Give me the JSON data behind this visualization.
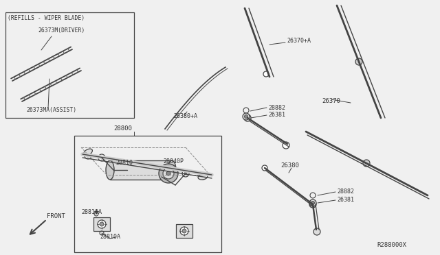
{
  "bg": "#f0f0f0",
  "lc": "#444444",
  "tc": "#333333",
  "fig_w": 6.4,
  "fig_h": 3.72,
  "dpi": 100,
  "labels": {
    "refills_title": "(REFILLS - WIPER BLADE)",
    "driver": "26373M(DRIVER)",
    "assist": "26373MA(ASSIST)",
    "assembly": "28800",
    "motor": "28810",
    "motor_a1": "28810A",
    "motor_a2": "28810A",
    "linkage": "28840P",
    "blade_top_a": "26370+A",
    "arm_top_a": "26380+A",
    "blade_mid": "26370",
    "arm_mid": "26380",
    "nut_u1": "28882",
    "nut_u2": "26381",
    "nut_l1": "28882",
    "nut_l2": "26381",
    "ref": "R288000X",
    "front": "FRONT"
  }
}
